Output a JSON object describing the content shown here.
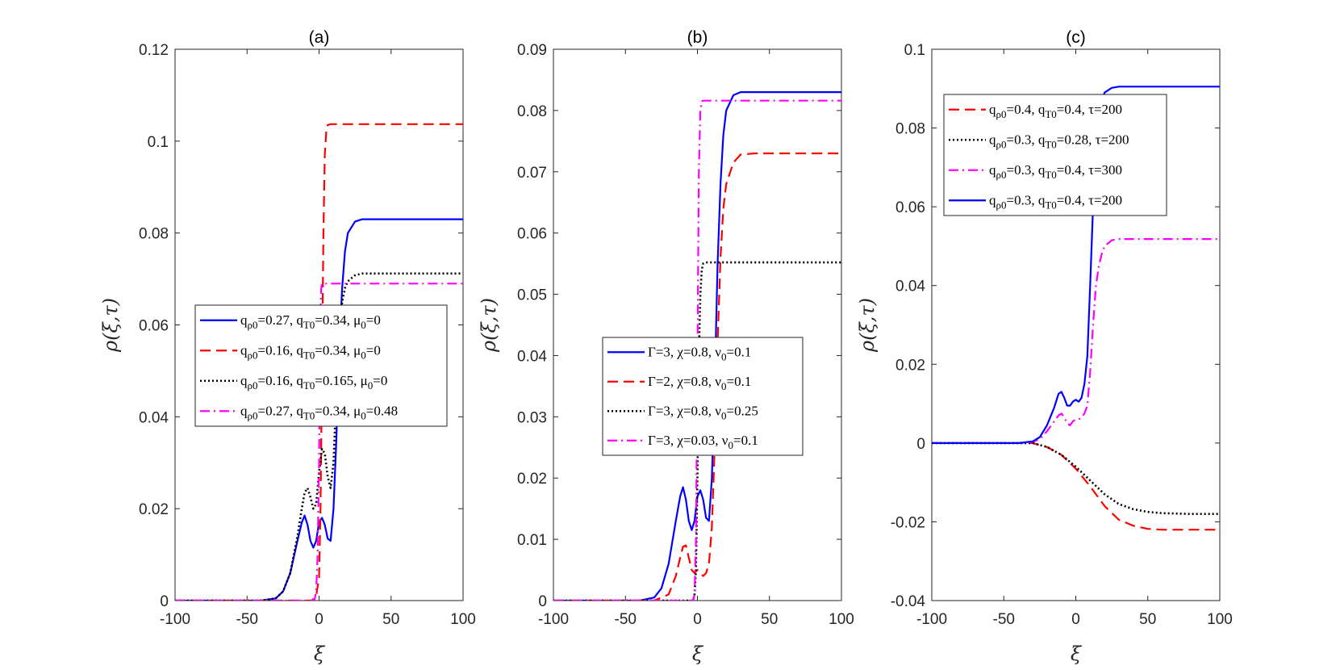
{
  "chart_data": [
    {
      "type": "line",
      "title": "(a)",
      "xlabel": "ξ",
      "ylabel": "ρ(ξ,τ)",
      "xlim": [
        -100,
        100
      ],
      "ylim": [
        0,
        0.12
      ],
      "xticks": [
        -100,
        -50,
        0,
        50,
        100
      ],
      "xtick_labels": [
        "-100",
        "-50",
        "0",
        "50",
        "100"
      ],
      "yticks": [
        0,
        0.02,
        0.04,
        0.06,
        0.08,
        0.1,
        0.12
      ],
      "ytick_labels": [
        "0",
        "0.02",
        "0.04",
        "0.06",
        "0.08",
        "0.1",
        "0.12"
      ],
      "legend_position": "center",
      "series": [
        {
          "name": "q_ρ0=0.27, q_T0=0.34, μ_0=0",
          "legend_parts": [
            "q",
            "ρ0",
            "=0.27, q",
            "T0",
            "=0.34, μ",
            "0",
            "=0"
          ],
          "color": "#0000ff",
          "style": "solid",
          "x": [
            -100,
            -40,
            -30,
            -25,
            -20,
            -15,
            -12,
            -10,
            -8,
            -6,
            -4,
            -2,
            0,
            2,
            4,
            6,
            8,
            10,
            12,
            14,
            16,
            18,
            20,
            25,
            30,
            40,
            100
          ],
          "y": [
            0,
            0,
            0.0005,
            0.002,
            0.006,
            0.013,
            0.017,
            0.0185,
            0.0165,
            0.013,
            0.0115,
            0.013,
            0.017,
            0.018,
            0.0165,
            0.0135,
            0.013,
            0.02,
            0.035,
            0.055,
            0.068,
            0.076,
            0.08,
            0.0825,
            0.083,
            0.083,
            0.083
          ]
        },
        {
          "name": "q_ρ0=0.16, q_T0=0.34, μ_0=0",
          "legend_parts": [
            "q",
            "ρ0",
            "=0.16, q",
            "T0",
            "=0.34, μ",
            "0",
            "=0"
          ],
          "color": "#ff0000",
          "style": "dashed",
          "x": [
            -100,
            -5,
            -2,
            0,
            1,
            2,
            3,
            4,
            5,
            6,
            8,
            100
          ],
          "y": [
            0,
            0,
            0.001,
            0.005,
            0.02,
            0.05,
            0.08,
            0.097,
            0.102,
            0.1035,
            0.1037,
            0.1037
          ]
        },
        {
          "name": "q_ρ0=0.16, q_T0=0.165, μ_0=0",
          "legend_parts": [
            "q",
            "ρ0",
            "=0.16, q",
            "T0",
            "=0.165, μ",
            "0",
            "=0"
          ],
          "color": "#000000",
          "style": "dotted",
          "x": [
            -100,
            -40,
            -30,
            -25,
            -20,
            -15,
            -12,
            -10,
            -8,
            -6,
            -4,
            -2,
            0,
            2,
            4,
            6,
            8,
            10,
            12,
            14,
            16,
            18,
            20,
            25,
            30,
            40,
            100
          ],
          "y": [
            0,
            0,
            0.0005,
            0.002,
            0.006,
            0.014,
            0.02,
            0.0235,
            0.0245,
            0.0225,
            0.02,
            0.021,
            0.028,
            0.033,
            0.032,
            0.027,
            0.0245,
            0.03,
            0.045,
            0.058,
            0.065,
            0.068,
            0.0695,
            0.0708,
            0.0712,
            0.0712,
            0.0712
          ]
        },
        {
          "name": "q_ρ0=0.27, q_T0=0.34, μ_0=0.48",
          "legend_parts": [
            "q",
            "ρ0",
            "=0.27, q",
            "T0",
            "=0.34, μ",
            "0",
            "=0.48"
          ],
          "color": "#ff00ff",
          "style": "dashdot",
          "x": [
            -100,
            -5,
            -3,
            -2,
            -1,
            0,
            0.5,
            1,
            1.5,
            2,
            3,
            100
          ],
          "y": [
            0,
            0,
            0.0003,
            0.002,
            0.01,
            0.03,
            0.05,
            0.063,
            0.068,
            0.069,
            0.069,
            0.069
          ]
        }
      ]
    },
    {
      "type": "line",
      "title": "(b)",
      "xlabel": "ξ",
      "ylabel": "ρ(ξ,τ)",
      "xlim": [
        -100,
        100
      ],
      "ylim": [
        0,
        0.09
      ],
      "xticks": [
        -100,
        -50,
        0,
        50,
        100
      ],
      "xtick_labels": [
        "-100",
        "-50",
        "0",
        "50",
        "100"
      ],
      "yticks": [
        0,
        0.01,
        0.02,
        0.03,
        0.04,
        0.05,
        0.06,
        0.07,
        0.08,
        0.09
      ],
      "ytick_labels": [
        "0",
        "0.01",
        "0.02",
        "0.03",
        "0.04",
        "0.05",
        "0.06",
        "0.07",
        "0.08",
        "0.09"
      ],
      "legend_position": "center-right",
      "series": [
        {
          "name": "Γ=3, χ=0.8, ν_0=0.1",
          "legend_parts": [
            "Γ=3, χ=0.8, ν",
            "0",
            "=0.1"
          ],
          "color": "#0000ff",
          "style": "solid",
          "x": [
            -100,
            -40,
            -30,
            -25,
            -20,
            -15,
            -12,
            -10,
            -8,
            -6,
            -4,
            -2,
            0,
            2,
            4,
            6,
            8,
            10,
            12,
            14,
            16,
            18,
            20,
            25,
            30,
            40,
            100
          ],
          "y": [
            0,
            0,
            0.0005,
            0.002,
            0.006,
            0.013,
            0.017,
            0.0185,
            0.0165,
            0.013,
            0.0115,
            0.013,
            0.017,
            0.018,
            0.0165,
            0.0135,
            0.013,
            0.02,
            0.035,
            0.055,
            0.068,
            0.076,
            0.08,
            0.0825,
            0.083,
            0.083,
            0.083
          ]
        },
        {
          "name": "Γ=2, χ=0.8, ν_0=0.1",
          "legend_parts": [
            "Γ=2, χ=0.8, ν",
            "0",
            "=0.1"
          ],
          "color": "#ff0000",
          "style": "dashed",
          "x": [
            -100,
            -30,
            -20,
            -15,
            -12,
            -10,
            -8,
            -6,
            -4,
            -2,
            0,
            2,
            4,
            6,
            8,
            10,
            12,
            14,
            16,
            18,
            20,
            25,
            30,
            40,
            100
          ],
          "y": [
            0,
            0,
            0.001,
            0.004,
            0.007,
            0.0088,
            0.009,
            0.007,
            0.005,
            0.0045,
            0.005,
            0.0045,
            0.004,
            0.0045,
            0.006,
            0.012,
            0.025,
            0.042,
            0.056,
            0.064,
            0.068,
            0.0715,
            0.0728,
            0.073,
            0.073
          ]
        },
        {
          "name": "Γ=3, χ=0.8, ν_0=0.25",
          "legend_parts": [
            "Γ=3, χ=0.8, ν",
            "0",
            "=0.25"
          ],
          "color": "#000000",
          "style": "dotted",
          "x": [
            -100,
            -3,
            -2,
            -1,
            0,
            1,
            2,
            3,
            4,
            6,
            100
          ],
          "y": [
            0,
            0,
            0.001,
            0.005,
            0.02,
            0.04,
            0.05,
            0.054,
            0.055,
            0.0552,
            0.0552
          ]
        },
        {
          "name": "Γ=3, χ=0.03, ν_0=0.1",
          "legend_parts": [
            "Γ=3, χ=0.03, ν",
            "0",
            "=0.1"
          ],
          "color": "#ff00ff",
          "style": "dashdot",
          "x": [
            -100,
            -3,
            -2,
            -1,
            0,
            1,
            2,
            3,
            4,
            6,
            100
          ],
          "y": [
            0,
            0,
            0.001,
            0.01,
            0.04,
            0.07,
            0.08,
            0.0815,
            0.0816,
            0.0816,
            0.0816
          ]
        }
      ]
    },
    {
      "type": "line",
      "title": "(c)",
      "xlabel": "ξ",
      "ylabel": "ρ(ξ,τ)",
      "xlim": [
        -100,
        100
      ],
      "ylim": [
        -0.04,
        0.1
      ],
      "xticks": [
        -100,
        -50,
        0,
        50,
        100
      ],
      "xtick_labels": [
        "-100",
        "-50",
        "0",
        "50",
        "100"
      ],
      "yticks": [
        -0.04,
        -0.02,
        0,
        0.02,
        0.04,
        0.06,
        0.08,
        0.1
      ],
      "ytick_labels": [
        "-0.04",
        "-0.02",
        "0",
        "0.02",
        "0.04",
        "0.06",
        "0.08",
        "0.1"
      ],
      "legend_position": "top-left",
      "series": [
        {
          "name": "q_ρ0=0.4, q_T0=0.4, τ=200",
          "legend_parts": [
            "q",
            "ρ0",
            "=0.4, q",
            "T0",
            "=0.4, τ=200",
            "",
            ""
          ],
          "color": "#ff0000",
          "style": "dashed",
          "x": [
            -100,
            -40,
            -30,
            -20,
            -10,
            0,
            10,
            20,
            30,
            40,
            50,
            60,
            80,
            100
          ],
          "y": [
            0,
            0,
            0,
            -0.001,
            -0.003,
            -0.0065,
            -0.011,
            -0.016,
            -0.0195,
            -0.021,
            -0.0218,
            -0.022,
            -0.022,
            -0.022
          ]
        },
        {
          "name": "q_ρ0=0.3, q_T0=0.28, τ=200",
          "legend_parts": [
            "q",
            "ρ0",
            "=0.3, q",
            "T0",
            "=0.28, τ=200",
            "",
            ""
          ],
          "color": "#000000",
          "style": "dotted",
          "x": [
            -100,
            -40,
            -30,
            -20,
            -10,
            0,
            10,
            20,
            30,
            40,
            50,
            60,
            80,
            100
          ],
          "y": [
            0,
            0,
            0,
            -0.001,
            -0.003,
            -0.006,
            -0.0095,
            -0.013,
            -0.0155,
            -0.0168,
            -0.0175,
            -0.0178,
            -0.018,
            -0.018
          ]
        },
        {
          "name": "q_ρ0=0.3, q_T0=0.4, τ=300",
          "legend_parts": [
            "q",
            "ρ0",
            "=0.3, q",
            "T0",
            "=0.4, τ=300",
            "",
            ""
          ],
          "color": "#ff00ff",
          "style": "dashdot",
          "x": [
            -100,
            -40,
            -30,
            -25,
            -20,
            -15,
            -12,
            -10,
            -8,
            -6,
            -4,
            -2,
            0,
            2,
            4,
            6,
            8,
            10,
            12,
            14,
            16,
            18,
            20,
            25,
            30,
            40,
            100
          ],
          "y": [
            0,
            0,
            0.0003,
            0.001,
            0.003,
            0.0055,
            0.007,
            0.0075,
            0.0065,
            0.005,
            0.0045,
            0.0055,
            0.006,
            0.006,
            0.0065,
            0.0075,
            0.0095,
            0.018,
            0.03,
            0.04,
            0.045,
            0.048,
            0.05,
            0.0515,
            0.0518,
            0.0518,
            0.0518
          ]
        },
        {
          "name": "q_ρ0=0.3, q_T0=0.4, τ=200",
          "legend_parts": [
            "q",
            "ρ0",
            "=0.3, q",
            "T0",
            "=0.4, τ=200",
            "",
            ""
          ],
          "color": "#0000ff",
          "style": "solid",
          "x": [
            -100,
            -40,
            -30,
            -25,
            -20,
            -15,
            -12,
            -10,
            -8,
            -6,
            -4,
            -2,
            0,
            2,
            4,
            6,
            8,
            10,
            12,
            14,
            16,
            18,
            20,
            25,
            30,
            40,
            100
          ],
          "y": [
            0,
            0,
            0.0004,
            0.0015,
            0.0045,
            0.009,
            0.0125,
            0.013,
            0.0115,
            0.0095,
            0.0095,
            0.0105,
            0.011,
            0.0105,
            0.0115,
            0.015,
            0.022,
            0.04,
            0.06,
            0.075,
            0.083,
            0.087,
            0.089,
            0.0902,
            0.0905,
            0.0905,
            0.0905
          ]
        }
      ]
    }
  ]
}
